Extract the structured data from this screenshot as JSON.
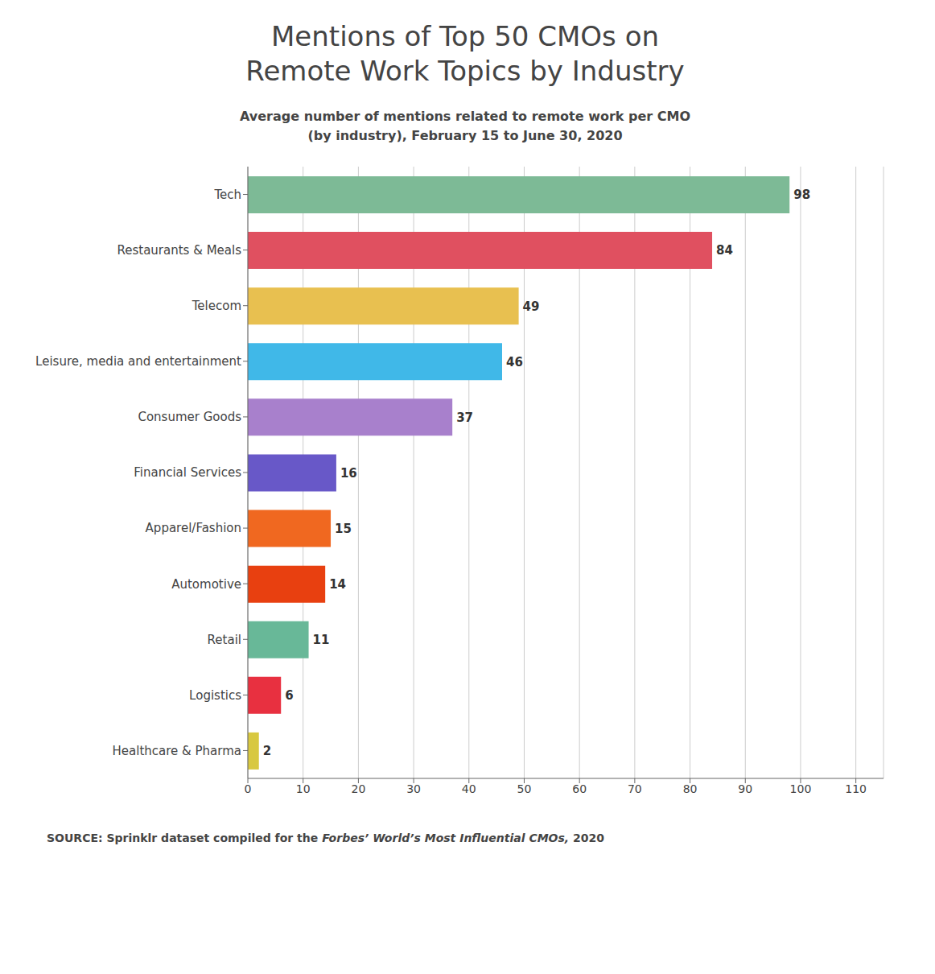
{
  "chart_data": {
    "type": "bar",
    "orientation": "horizontal",
    "title": "Mentions of Top 50 CMOs on\nRemote Work Topics by Industry",
    "subtitle": "Average number of mentions related to remote work per CMO\n(by industry), February 15 to June 30, 2020",
    "source": [
      "SOURCE: Sprinklr dataset compiled for the ",
      "Forbes’ World’s Most Influential CMOs,",
      " 2020"
    ],
    "categories": [
      "Tech",
      "Restaurants & Meals",
      "Telecom",
      "Leisure, media and entertainment",
      "Consumer Goods",
      "Financial Services",
      "Apparel/Fashion",
      "Automotive",
      "Retail",
      "Logistics",
      "Healthcare & Pharma"
    ],
    "values": [
      98,
      84,
      49,
      46,
      37,
      16,
      15,
      14,
      11,
      6,
      2
    ],
    "colors": [
      "#7dba96",
      "#e05060",
      "#e8c050",
      "#40b8e8",
      "#a880cc",
      "#6858c8",
      "#f06820",
      "#e84010",
      "#68b898",
      "#e83040",
      "#d8c840"
    ],
    "xlim": [
      0,
      115
    ],
    "xticks": [
      0,
      10,
      20,
      30,
      40,
      50,
      60,
      70,
      80,
      90,
      100,
      110
    ],
    "grid": true,
    "data_labels": true
  }
}
